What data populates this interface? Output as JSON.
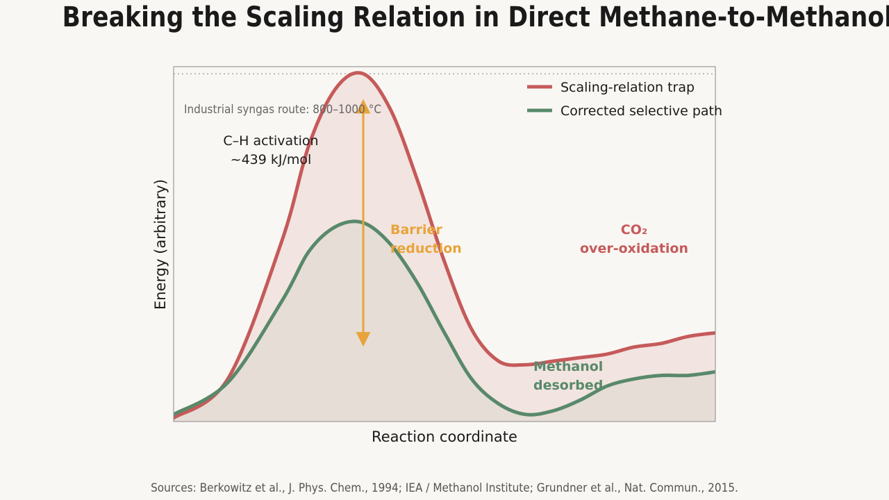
{
  "title": "Breaking the Scaling Relation in Direct Methane-to-Methanol",
  "source": "Sources: Berkowitz et al., J. Phys. Chem., 1994; IEA / Methanol Institute; Grundner et al., Nat. Commun., 2015.",
  "colors": {
    "trap": "#c55a5a",
    "selective": "#58896a",
    "barrier": "#e8a43a",
    "reference": "#b9b9b9",
    "background": "#f9f7f3"
  },
  "chart_data": {
    "type": "line",
    "xlabel": "Reaction coordinate",
    "ylabel": "Energy (arbitrary)",
    "xlim": [
      0,
      1
    ],
    "ylim": [
      0,
      1.0
    ],
    "grid": false,
    "legend_position": "top-right",
    "series": [
      {
        "name": "Scaling-relation trap",
        "color": "#c55a5a",
        "x": [
          0.0,
          0.1,
          0.2,
          0.25,
          0.3,
          0.35,
          0.4,
          0.45,
          0.5,
          0.55,
          0.6,
          0.65,
          0.7,
          0.75,
          0.8,
          0.85,
          0.9,
          0.95,
          1.0
        ],
        "y": [
          0.01,
          0.12,
          0.51,
          0.78,
          0.94,
          0.98,
          0.88,
          0.68,
          0.45,
          0.26,
          0.17,
          0.16,
          0.17,
          0.18,
          0.19,
          0.21,
          0.22,
          0.24,
          0.25
        ]
      },
      {
        "name": "Corrected selective path",
        "color": "#58896a",
        "x": [
          0.0,
          0.1,
          0.2,
          0.25,
          0.3,
          0.35,
          0.4,
          0.45,
          0.5,
          0.55,
          0.6,
          0.65,
          0.7,
          0.75,
          0.8,
          0.85,
          0.9,
          0.95,
          1.0
        ],
        "y": [
          0.02,
          0.11,
          0.34,
          0.48,
          0.55,
          0.56,
          0.5,
          0.39,
          0.25,
          0.12,
          0.05,
          0.02,
          0.03,
          0.06,
          0.1,
          0.12,
          0.13,
          0.13,
          0.14
        ]
      }
    ],
    "reference_line": {
      "y": 0.98,
      "label": "Industrial syngas route: 800–1000 °C"
    },
    "annotations": {
      "ch_activation": [
        "C–H activation",
        "~439 kJ/mol"
      ],
      "barrier": [
        "Barrier",
        "reduction"
      ],
      "co2": [
        "CO₂",
        "over-oxidation"
      ],
      "methanol": [
        "Methanol",
        "desorbed"
      ]
    },
    "barrier_arrow": {
      "x": 0.35,
      "y_from": 0.9,
      "y_to": 0.22
    }
  }
}
